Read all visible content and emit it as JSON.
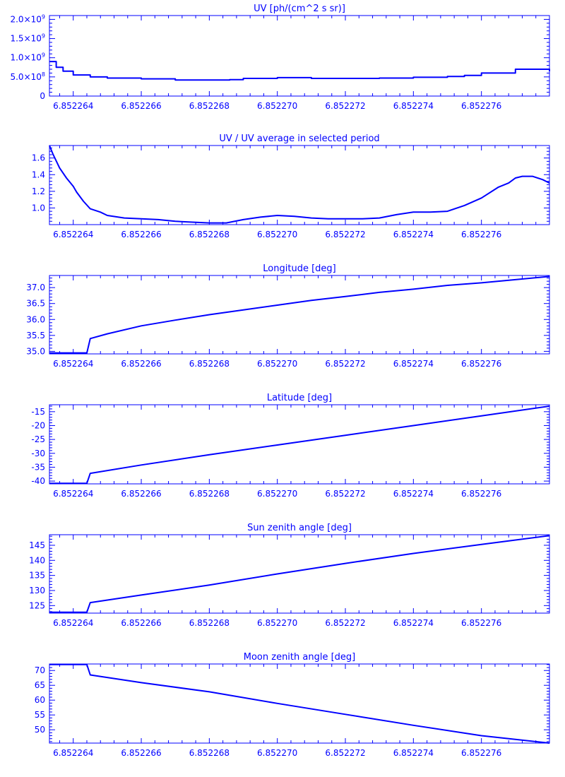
{
  "style": {
    "color": "#0000ff",
    "background": "#ffffff"
  },
  "chart_data": [
    {
      "type": "line",
      "title": "UV [ph/(cm^2 s sr)]",
      "xlim": [
        6.8522633,
        6.852278
      ],
      "ylim": [
        0,
        2100000000.0
      ],
      "x_ticks": [
        6.852264,
        6.852266,
        6.852268,
        6.85227,
        6.852272,
        6.852274,
        6.852276
      ],
      "x_tick_labels": [
        "6.852264",
        "6.852266",
        "6.852268",
        "6.852270",
        "6.852272",
        "6.852274",
        "6.852276"
      ],
      "y_ticks": [
        0,
        500000000.0,
        1000000000.0,
        1500000000.0,
        2000000000.0
      ],
      "y_tick_labels": [
        {
          "mantissa": "0",
          "exponent": ""
        },
        {
          "mantissa": "5.0×10",
          "exponent": "8"
        },
        {
          "mantissa": "1.0×10",
          "exponent": "9"
        },
        {
          "mantissa": "1.5×10",
          "exponent": "9"
        },
        {
          "mantissa": "2.0×10",
          "exponent": "9"
        }
      ],
      "step": true,
      "series": [
        {
          "x": [
            6.8522633,
            6.8522635,
            6.8522637,
            6.852264,
            6.8522645,
            6.852265,
            6.852266,
            6.852267,
            6.852268,
            6.8522686,
            6.852269,
            6.85227,
            6.852271,
            6.852272,
            6.852273,
            6.852274,
            6.852275,
            6.8522755,
            6.852276,
            6.852277,
            6.8522775,
            6.852278
          ],
          "y": [
            900000000.0,
            750000000.0,
            650000000.0,
            550000000.0,
            500000000.0,
            470000000.0,
            450000000.0,
            420000000.0,
            420000000.0,
            430000000.0,
            460000000.0,
            480000000.0,
            460000000.0,
            460000000.0,
            470000000.0,
            490000000.0,
            510000000.0,
            540000000.0,
            600000000.0,
            700000000.0,
            700000000.0,
            650000000.0
          ]
        }
      ]
    },
    {
      "type": "line",
      "title": "UV / UV average in selected period",
      "xlim": [
        6.8522633,
        6.852278
      ],
      "ylim": [
        0.8,
        1.75
      ],
      "x_ticks": [
        6.852264,
        6.852266,
        6.852268,
        6.85227,
        6.852272,
        6.852274,
        6.852276
      ],
      "x_tick_labels": [
        "6.852264",
        "6.852266",
        "6.852268",
        "6.852270",
        "6.852272",
        "6.852274",
        "6.852276"
      ],
      "y_ticks": [
        1.0,
        1.2,
        1.4,
        1.6
      ],
      "y_tick_labels": [
        "1.0",
        "1.2",
        "1.4",
        "1.6"
      ],
      "series": [
        {
          "x": [
            6.8522633,
            6.8522634,
            6.8522636,
            6.8522638,
            6.852264,
            6.8522641,
            6.8522643,
            6.8522645,
            6.8522648,
            6.852265,
            6.8522655,
            6.852266,
            6.8522665,
            6.852267,
            6.8522675,
            6.852268,
            6.8522685,
            6.852269,
            6.8522695,
            6.85227,
            6.8522705,
            6.852271,
            6.8522715,
            6.852272,
            6.8522725,
            6.852273,
            6.8522735,
            6.852274,
            6.8522745,
            6.852275,
            6.8522755,
            6.852276,
            6.8522765,
            6.8522768,
            6.852277,
            6.8522772,
            6.8522775,
            6.8522778,
            6.852278
          ],
          "y": [
            1.75,
            1.65,
            1.48,
            1.36,
            1.26,
            1.19,
            1.08,
            0.99,
            0.95,
            0.91,
            0.88,
            0.87,
            0.86,
            0.84,
            0.83,
            0.82,
            0.82,
            0.86,
            0.89,
            0.91,
            0.9,
            0.88,
            0.87,
            0.87,
            0.87,
            0.88,
            0.92,
            0.95,
            0.95,
            0.96,
            1.03,
            1.12,
            1.25,
            1.3,
            1.36,
            1.38,
            1.38,
            1.34,
            1.3
          ]
        }
      ]
    },
    {
      "type": "line",
      "title": "Longitude [deg]",
      "xlim": [
        6.8522633,
        6.852278
      ],
      "ylim": [
        34.92,
        37.38
      ],
      "x_ticks": [
        6.852264,
        6.852266,
        6.852268,
        6.85227,
        6.852272,
        6.852274,
        6.852276
      ],
      "x_tick_labels": [
        "6.852264",
        "6.852266",
        "6.852268",
        "6.852270",
        "6.852272",
        "6.852274",
        "6.852276"
      ],
      "y_ticks": [
        35.0,
        35.5,
        36.0,
        36.5,
        37.0
      ],
      "y_tick_labels": [
        "35.0",
        "35.5",
        "36.0",
        "36.5",
        "37.0"
      ],
      "series": [
        {
          "x": [
            6.8522633,
            6.8522644,
            6.8522645,
            6.852265,
            6.852266,
            6.852267,
            6.852268,
            6.852269,
            6.85227,
            6.852271,
            6.852272,
            6.852273,
            6.852274,
            6.852275,
            6.852276,
            6.852277,
            6.852278
          ],
          "y": [
            34.95,
            34.95,
            35.4,
            35.55,
            35.8,
            35.98,
            36.15,
            36.3,
            36.45,
            36.6,
            36.72,
            36.85,
            36.95,
            37.07,
            37.15,
            37.25,
            37.35
          ]
        }
      ]
    },
    {
      "type": "line",
      "title": "Latitude [deg]",
      "xlim": [
        6.8522633,
        6.852278
      ],
      "ylim": [
        -41,
        -12.5
      ],
      "x_ticks": [
        6.852264,
        6.852266,
        6.852268,
        6.85227,
        6.852272,
        6.852274,
        6.852276
      ],
      "x_tick_labels": [
        "6.852264",
        "6.852266",
        "6.852268",
        "6.852270",
        "6.852272",
        "6.852274",
        "6.852276"
      ],
      "y_ticks": [
        -40,
        -35,
        -30,
        -25,
        -20,
        -15
      ],
      "y_tick_labels": [
        "-40",
        "-35",
        "-30",
        "-25",
        "-20",
        "-15"
      ],
      "series": [
        {
          "x": [
            6.8522633,
            6.8522644,
            6.8522645,
            6.852266,
            6.852268,
            6.85227,
            6.852272,
            6.852274,
            6.852276,
            6.852278
          ],
          "y": [
            -40.8,
            -40.8,
            -37.2,
            -34.2,
            -30.5,
            -27.0,
            -23.5,
            -20.0,
            -16.5,
            -13.0
          ]
        }
      ]
    },
    {
      "type": "line",
      "title": "Sun zenith angle [deg]",
      "xlim": [
        6.8522633,
        6.852278
      ],
      "ylim": [
        122.5,
        148.5
      ],
      "x_ticks": [
        6.852264,
        6.852266,
        6.852268,
        6.85227,
        6.852272,
        6.852274,
        6.852276
      ],
      "x_tick_labels": [
        "6.852264",
        "6.852266",
        "6.852268",
        "6.852270",
        "6.852272",
        "6.852274",
        "6.852276"
      ],
      "y_ticks": [
        125,
        130,
        135,
        140,
        145
      ],
      "y_tick_labels": [
        "125",
        "130",
        "135",
        "140",
        "145"
      ],
      "series": [
        {
          "x": [
            6.8522633,
            6.8522644,
            6.8522645,
            6.852266,
            6.852268,
            6.85227,
            6.852272,
            6.852274,
            6.852276,
            6.852278
          ],
          "y": [
            122.8,
            122.8,
            126.0,
            128.5,
            131.8,
            135.5,
            139.0,
            142.3,
            145.3,
            148.2
          ]
        }
      ]
    },
    {
      "type": "line",
      "title": "Moon zenith angle [deg]",
      "xlim": [
        6.8522633,
        6.852278
      ],
      "ylim": [
        45.5,
        72.2
      ],
      "x_ticks": [
        6.852264,
        6.852266,
        6.852268,
        6.85227,
        6.852272,
        6.852274,
        6.852276
      ],
      "x_tick_labels": [
        "6.852264",
        "6.852266",
        "6.852268",
        "6.852270",
        "6.852272",
        "6.852274",
        "6.852276"
      ],
      "y_ticks": [
        50,
        55,
        60,
        65,
        70
      ],
      "y_tick_labels": [
        "50",
        "55",
        "60",
        "65",
        "70"
      ],
      "series": [
        {
          "x": [
            6.8522633,
            6.8522644,
            6.8522645,
            6.852266,
            6.852268,
            6.85227,
            6.852272,
            6.852274,
            6.852276,
            6.852278
          ],
          "y": [
            72.0,
            72.0,
            68.5,
            65.9,
            62.8,
            58.9,
            55.2,
            51.5,
            48.0,
            45.5
          ]
        }
      ]
    }
  ]
}
